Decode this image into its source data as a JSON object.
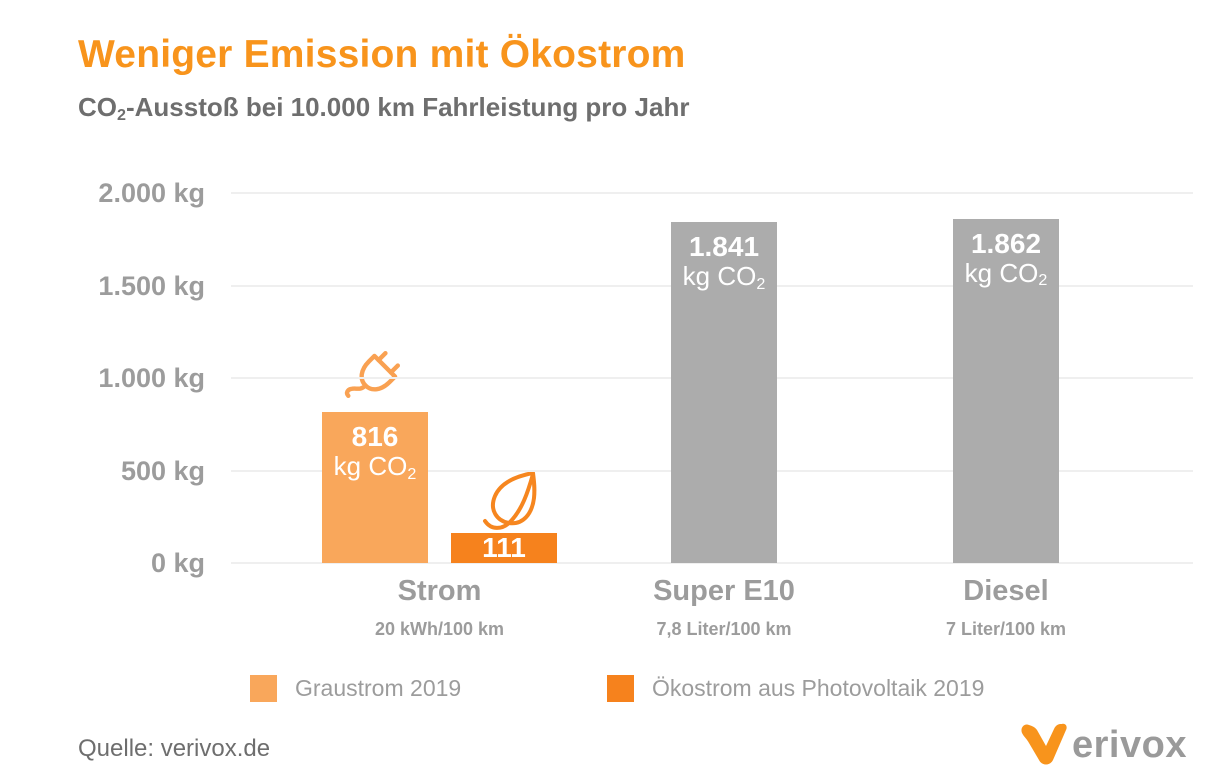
{
  "header": {
    "title": "Weniger Emission mit Ökostrom",
    "subtitle_pre": "CO",
    "subtitle_sub": "2",
    "subtitle_post": "-Ausstoß bei 10.000 km Fahrleistung pro Jahr"
  },
  "chart_data": {
    "type": "bar",
    "title": "Weniger Emission mit Ökostrom",
    "subtitle": "CO2-Ausstoß bei 10.000 km Fahrleistung pro Jahr",
    "ylim": [
      0,
      2000
    ],
    "grid": true,
    "legend_position": "bottom",
    "yticks": [
      {
        "value": 2000,
        "label": "2.000 kg"
      },
      {
        "value": 1500,
        "label": "1.500 kg"
      },
      {
        "value": 1000,
        "label": "1.000 kg"
      },
      {
        "value": 500,
        "label": "500 kg"
      },
      {
        "value": 0,
        "label": "0 kg"
      }
    ],
    "groups": [
      {
        "category": "Strom",
        "sublabel": "20 kWh/100 km",
        "bars": [
          {
            "series": "Graustrom 2019",
            "value": 816,
            "value_label": "816",
            "unit_pre": "kg CO",
            "unit_sub": "2",
            "color": "#F9A75B",
            "icon": "plug-icon"
          },
          {
            "series": "Ökostrom aus Photovoltaik 2019",
            "value": 111,
            "value_label": "111",
            "unit_pre": "",
            "unit_sub": "",
            "color": "#F6821D",
            "icon": "leaf-icon"
          }
        ]
      },
      {
        "category": "Super E10",
        "sublabel": "7,8 Liter/100 km",
        "bars": [
          {
            "value": 1841,
            "value_label": "1.841",
            "unit_pre": "kg CO",
            "unit_sub": "2",
            "color": "#ACACAC",
            "icon": ""
          }
        ]
      },
      {
        "category": "Diesel",
        "sublabel": "7 Liter/100 km",
        "bars": [
          {
            "value": 1862,
            "value_label": "1.862",
            "unit_pre": "kg CO",
            "unit_sub": "2",
            "color": "#ACACAC",
            "icon": ""
          }
        ]
      }
    ],
    "legend": [
      {
        "label": "Graustrom 2019",
        "color": "#F9A75B"
      },
      {
        "label": "Ökostrom aus Photovoltaik 2019",
        "color": "#F6821D"
      }
    ],
    "colors": {
      "title_orange": "#F8941C",
      "light_orange": "#F9A75B",
      "dark_orange": "#F6821D",
      "bar_gray": "#ACACAC",
      "text_gray": "#9C9C9C",
      "subtitle_gray": "#6E6E6E",
      "gridline": "#EFEFEF"
    }
  },
  "footer": {
    "source": "Quelle: verivox.de",
    "logo_text": "erivox"
  }
}
